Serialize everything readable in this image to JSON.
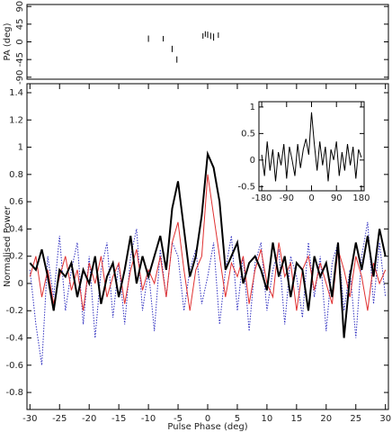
{
  "chart_data": [
    {
      "type": "errorbar",
      "ylabel": "PA (deg)",
      "x": [
        -10,
        -7.5,
        -6,
        -5.2,
        -0.8,
        -0.4,
        0,
        0.5,
        1,
        1.8
      ],
      "values": [
        8,
        8,
        -18,
        -45,
        15,
        20,
        18,
        15,
        12,
        17
      ],
      "errors": [
        8,
        7,
        8,
        8,
        7,
        7,
        8,
        8,
        9,
        7
      ],
      "color": "#000000",
      "xlim": [
        -30.5,
        30.5
      ],
      "ylim": [
        -95,
        95
      ],
      "yticks": [
        -90,
        -45,
        0,
        45,
        90
      ]
    },
    {
      "type": "line",
      "xlabel": "Pulse Phase (deg)",
      "ylabel": "Normalised Power",
      "x": [
        -30,
        -29,
        -28,
        -27,
        -26,
        -25,
        -24,
        -23,
        -22,
        -21,
        -20,
        -19,
        -18,
        -17,
        -16,
        -15,
        -14,
        -13,
        -12,
        -11,
        -10,
        -9,
        -8,
        -7,
        -6,
        -5,
        -4,
        -3,
        -2,
        -1,
        0,
        1,
        2,
        3,
        4,
        5,
        6,
        7,
        8,
        9,
        10,
        11,
        12,
        13,
        14,
        15,
        16,
        17,
        18,
        19,
        20,
        21,
        22,
        23,
        24,
        25,
        26,
        27,
        28,
        29,
        30
      ],
      "series": [
        {
          "color": "#3030c0",
          "style": "dotted",
          "linewidth": 1,
          "values": [
            0.1,
            -0.3,
            -0.6,
            0.2,
            -0.1,
            0.35,
            -0.2,
            0.1,
            0.3,
            -0.3,
            0.2,
            -0.4,
            0.1,
            0.3,
            -0.25,
            0.15,
            -0.3,
            0.2,
            0.4,
            -0.2,
            0.1,
            -0.35,
            0.25,
            -0.1,
            0.3,
            0.2,
            -0.2,
            0.1,
            0.25,
            -0.15,
            0.05,
            0.3,
            -0.3,
            0.1,
            0.35,
            -0.2,
            0.2,
            -0.35,
            0.15,
            0.3,
            -0.2,
            0.1,
            0.25,
            -0.3,
            0.2,
            0.05,
            -0.25,
            0.3,
            -0.1,
            0.2,
            -0.35,
            0.15,
            0.3,
            -0.2,
            0.1,
            -0.4,
            0.2,
            0.45,
            -0.15,
            0.3,
            -0.1
          ]
        },
        {
          "color": "#e03030",
          "style": "solid",
          "linewidth": 1,
          "values": [
            0.05,
            0.2,
            -0.1,
            0.1,
            -0.15,
            0.05,
            0.2,
            -0.05,
            0.1,
            -0.2,
            0.15,
            0.0,
            0.2,
            -0.1,
            0.05,
            0.15,
            -0.15,
            0.1,
            0.25,
            -0.05,
            0.1,
            0.0,
            0.2,
            -0.1,
            0.3,
            0.45,
            0.1,
            -0.2,
            0.1,
            0.2,
            0.8,
            0.5,
            0.2,
            -0.1,
            0.15,
            0.05,
            0.2,
            -0.15,
            0.1,
            0.25,
            0.0,
            -0.1,
            0.3,
            0.05,
            0.15,
            -0.2,
            0.1,
            0.2,
            -0.05,
            0.15,
            0.0,
            -0.15,
            0.25,
            0.1,
            -0.1,
            0.2,
            0.05,
            -0.2,
            0.15,
            0.0,
            0.1
          ]
        },
        {
          "color": "#000000",
          "style": "solid",
          "linewidth": 2,
          "values": [
            0.15,
            0.1,
            0.25,
            0.05,
            -0.2,
            0.1,
            0.05,
            0.15,
            -0.1,
            0.1,
            0.0,
            0.2,
            -0.15,
            0.05,
            0.15,
            -0.1,
            0.1,
            0.35,
            0.0,
            0.2,
            0.05,
            0.2,
            0.35,
            0.1,
            0.55,
            0.75,
            0.4,
            0.05,
            0.2,
            0.5,
            0.95,
            0.85,
            0.6,
            0.1,
            0.2,
            0.3,
            0.0,
            0.15,
            0.2,
            0.1,
            -0.05,
            0.3,
            0.05,
            0.2,
            -0.1,
            0.15,
            0.1,
            -0.2,
            0.2,
            0.05,
            0.15,
            -0.1,
            0.3,
            -0.4,
            0.05,
            0.3,
            0.1,
            0.35,
            0.05,
            0.4,
            0.2
          ]
        }
      ],
      "xlim": [
        -30.5,
        30.5
      ],
      "ylim": [
        -0.925,
        1.466
      ],
      "xticks": [
        -30,
        -25,
        -20,
        -15,
        -10,
        -5,
        0,
        5,
        10,
        15,
        20,
        25,
        30
      ],
      "yticks": [
        -0.8,
        -0.6,
        -0.4,
        -0.2,
        0,
        0.2,
        0.4,
        0.6,
        0.8,
        1,
        1.2,
        1.4
      ]
    },
    {
      "type": "line",
      "x": [
        -180,
        -170,
        -160,
        -150,
        -140,
        -130,
        -120,
        -110,
        -100,
        -90,
        -80,
        -70,
        -60,
        -50,
        -40,
        -30,
        -20,
        -10,
        0,
        10,
        20,
        30,
        40,
        50,
        60,
        70,
        80,
        90,
        100,
        110,
        120,
        130,
        140,
        150,
        160,
        170,
        180
      ],
      "series": [
        {
          "color": "#000000",
          "style": "solid",
          "linewidth": 1,
          "values": [
            0.1,
            -0.3,
            0.35,
            -0.2,
            0.2,
            -0.4,
            0.15,
            -0.1,
            0.3,
            -0.35,
            0.25,
            0.0,
            -0.3,
            0.3,
            -0.15,
            0.2,
            0.4,
            0.1,
            0.9,
            0.3,
            -0.2,
            0.35,
            -0.1,
            0.25,
            -0.4,
            0.2,
            0.0,
            0.35,
            -0.3,
            0.15,
            -0.2,
            0.3,
            -0.1,
            0.25,
            -0.35,
            0.2,
            0.05
          ]
        }
      ],
      "xlim": [
        -190,
        190
      ],
      "ylim": [
        -0.58,
        1.1
      ],
      "xticks": [
        -180,
        -90,
        0,
        90,
        180
      ],
      "yticks": [
        -0.5,
        0,
        0.5,
        1
      ]
    }
  ]
}
